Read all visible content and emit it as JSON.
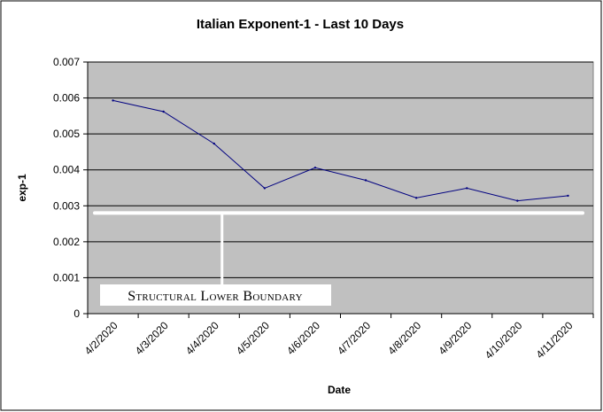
{
  "chart_data": {
    "type": "line",
    "title": "Italian Exponent-1 - Last 10 Days",
    "xlabel": "Date",
    "ylabel": "exp-1",
    "categories": [
      "4/2/2020",
      "4/3/2020",
      "4/4/2020",
      "4/5/2020",
      "4/6/2020",
      "4/7/2020",
      "4/8/2020",
      "4/9/2020",
      "4/10/2020",
      "4/11/2020"
    ],
    "series": [
      {
        "values": [
          0.00593,
          0.00562,
          0.00473,
          0.00349,
          0.00406,
          0.00371,
          0.00322,
          0.00349,
          0.00314,
          0.00328
        ]
      }
    ],
    "y_ticks": [
      "0",
      "0.001",
      "0.002",
      "0.003",
      "0.004",
      "0.005",
      "0.006",
      "0.007"
    ],
    "ylim": [
      0,
      0.007
    ],
    "grid": true,
    "legend": "none",
    "annotations": [
      {
        "text": "Structural Lower Boundary",
        "value": 0.0028
      }
    ],
    "colors": {
      "plot_background": "#c0c0c0",
      "line": "#000080",
      "boundary": "#ffffff",
      "grid": "#000000"
    }
  }
}
